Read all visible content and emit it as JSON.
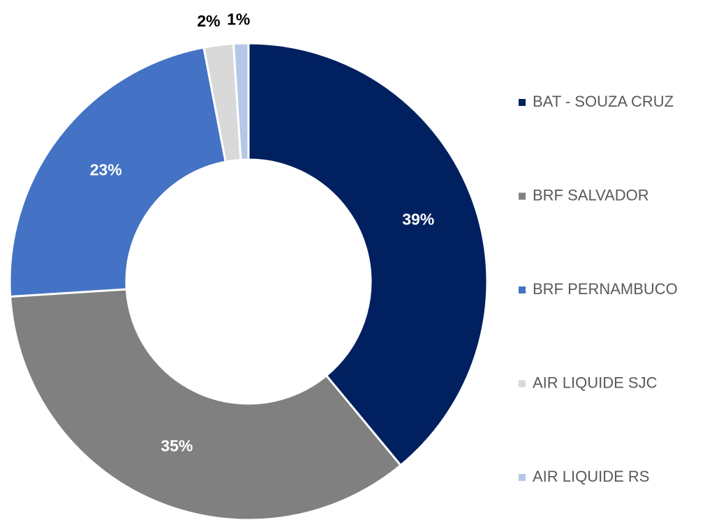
{
  "chart_data": {
    "type": "donut",
    "categories": [
      "BAT - SOUZA CRUZ",
      "BRF SALVADOR",
      "BRF PERNAMBUCO",
      "AIR LIQUIDE SJC",
      "AIR LIQUIDE RS"
    ],
    "values": [
      39,
      35,
      23,
      2,
      1
    ],
    "value_labels": [
      "39%",
      "35%",
      "23%",
      "2%",
      "1%"
    ],
    "colors": [
      "#002060",
      "#808080",
      "#4472c4",
      "#d9d9d9",
      "#b4c7e7"
    ],
    "legend": "right"
  }
}
